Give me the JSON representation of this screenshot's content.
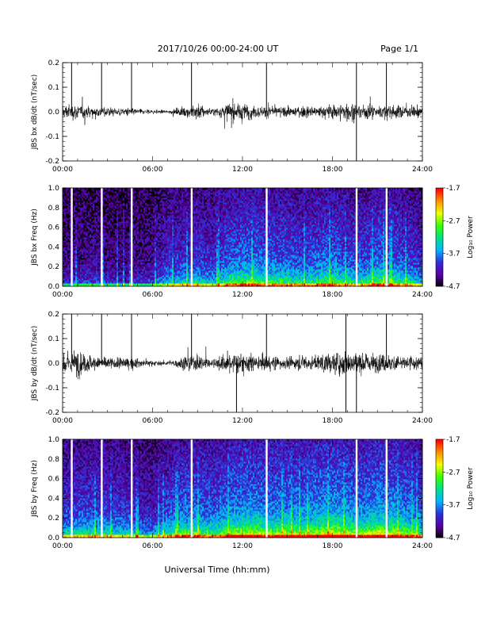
{
  "header": {
    "title": "2017/10/26  00:00-24:00 UT",
    "page": "Page 1/1"
  },
  "footer": {
    "xlabel": "Universal Time (hh:mm)"
  },
  "colorbar": {
    "label": "Log₁₀ Power",
    "ticks": [
      "-1.7",
      "-2.7",
      "-3.7",
      "-4.7"
    ],
    "tick_values": [
      -1.7,
      -2.7,
      -3.7,
      -4.7
    ],
    "range": [
      -4.7,
      -1.7
    ],
    "colors": [
      "#000000",
      "#5a00a0",
      "#2f2fd8",
      "#00b4ff",
      "#00e08a",
      "#3cff00",
      "#f2ff00",
      "#ff9000",
      "#ff0000"
    ]
  },
  "chart_data": [
    {
      "type": "line",
      "ylabel": "JBS bx dB/dt (nT/sec)",
      "xlim": [
        0,
        24
      ],
      "ylim": [
        -0.2,
        0.2
      ],
      "x_ticks": [
        "00:00",
        "06:00",
        "12:00",
        "18:00",
        "24:00"
      ],
      "y_ticks": [
        "0.2",
        "0.1",
        "0.0",
        "-0.1",
        "-0.2"
      ],
      "y_tick_values": [
        0.2,
        0.1,
        0.0,
        -0.1,
        -0.2
      ],
      "line_color": "#000000",
      "envelope_hours": [
        0,
        1,
        2,
        3,
        4,
        5,
        6,
        7,
        8,
        9,
        10,
        11,
        12,
        13,
        14,
        15,
        16,
        17,
        18,
        19,
        20,
        21,
        22,
        23,
        24
      ],
      "envelope_amplitude": [
        0.05,
        0.05,
        0.04,
        0.03,
        0.03,
        0.02,
        0.015,
        0.01,
        0.03,
        0.06,
        0.02,
        0.06,
        0.06,
        0.04,
        0.04,
        0.03,
        0.04,
        0.035,
        0.05,
        0.07,
        0.05,
        0.045,
        0.045,
        0.04,
        0.04
      ],
      "spikes": [
        {
          "t": 0.6,
          "v": 0.2
        },
        {
          "t": 2.6,
          "v": 0.2
        },
        {
          "t": 4.6,
          "v": 0.2
        },
        {
          "t": 8.6,
          "v": 0.2
        },
        {
          "t": 13.6,
          "v": 0.2
        },
        {
          "t": 19.6,
          "v": 0.2
        },
        {
          "t": 21.6,
          "v": 0.2
        },
        {
          "t": 19.6,
          "v": -0.2
        }
      ]
    },
    {
      "type": "heatmap",
      "ylabel": "JBS bx Freq (Hz)",
      "xlim": [
        0,
        24
      ],
      "ylim": [
        0,
        1.0
      ],
      "x_ticks": [
        "00:00",
        "06:00",
        "12:00",
        "18:00",
        "24:00"
      ],
      "y_ticks": [
        "1.0",
        "0.8",
        "0.6",
        "0.4",
        "0.2",
        "0.0"
      ],
      "y_tick_values": [
        1.0,
        0.8,
        0.6,
        0.4,
        0.2,
        0.0
      ],
      "z_range": [
        -4.7,
        -1.7
      ],
      "gap_hours": [
        0.6,
        2.6,
        4.6,
        8.6,
        13.6,
        19.6,
        21.6
      ],
      "activity_hours": [
        0,
        2,
        4,
        6,
        7,
        8,
        9,
        10,
        11,
        12,
        13,
        14,
        15,
        16,
        17,
        18,
        19,
        20,
        21,
        22,
        23,
        24
      ],
      "activity_level": [
        0.2,
        0.25,
        0.2,
        0.25,
        0.4,
        0.45,
        0.45,
        0.4,
        0.55,
        0.6,
        0.6,
        0.55,
        0.55,
        0.5,
        0.55,
        0.6,
        0.5,
        0.5,
        0.6,
        0.55,
        0.5,
        0.4
      ]
    },
    {
      "type": "line",
      "ylabel": "JBS by dB/dt (nT/sec)",
      "xlim": [
        0,
        24
      ],
      "ylim": [
        -0.2,
        0.2
      ],
      "x_ticks": [
        "00:00",
        "06:00",
        "12:00",
        "18:00",
        "24:00"
      ],
      "y_ticks": [
        "0.2",
        "0.1",
        "0.0",
        "-0.1",
        "-0.2"
      ],
      "y_tick_values": [
        0.2,
        0.1,
        0.0,
        -0.1,
        -0.2
      ],
      "line_color": "#000000",
      "envelope_hours": [
        0,
        1,
        2,
        3,
        4,
        5,
        6,
        7,
        8,
        9,
        10,
        11,
        12,
        13,
        14,
        15,
        16,
        17,
        18,
        19,
        20,
        21,
        22,
        23,
        24
      ],
      "envelope_amplitude": [
        0.08,
        0.09,
        0.05,
        0.04,
        0.04,
        0.03,
        0.02,
        0.015,
        0.04,
        0.06,
        0.03,
        0.07,
        0.07,
        0.05,
        0.05,
        0.04,
        0.05,
        0.05,
        0.07,
        0.09,
        0.07,
        0.06,
        0.06,
        0.05,
        0.05
      ],
      "spikes": [
        {
          "t": 0.6,
          "v": 0.2
        },
        {
          "t": 2.6,
          "v": 0.2
        },
        {
          "t": 4.6,
          "v": 0.2
        },
        {
          "t": 8.6,
          "v": 0.2
        },
        {
          "t": 13.6,
          "v": 0.2
        },
        {
          "t": 18.9,
          "v": 0.2
        },
        {
          "t": 21.6,
          "v": 0.2
        },
        {
          "t": 11.6,
          "v": -0.2
        },
        {
          "t": 18.9,
          "v": -0.2
        },
        {
          "t": 19.6,
          "v": -0.2
        }
      ]
    },
    {
      "type": "heatmap",
      "ylabel": "JBS by Freq (Hz)",
      "xlim": [
        0,
        24
      ],
      "ylim": [
        0,
        1.0
      ],
      "x_ticks": [
        "00:00",
        "06:00",
        "12:00",
        "18:00",
        "24:00"
      ],
      "y_ticks": [
        "1.0",
        "0.8",
        "0.6",
        "0.4",
        "0.2",
        "0.0"
      ],
      "y_tick_values": [
        1.0,
        0.8,
        0.6,
        0.4,
        0.2,
        0.0
      ],
      "z_range": [
        -4.7,
        -1.7
      ],
      "gap_hours": [
        0.6,
        2.6,
        4.6,
        8.6,
        13.6,
        19.6,
        21.6
      ],
      "activity_hours": [
        0,
        2,
        4,
        6,
        7,
        8,
        9,
        10,
        11,
        12,
        13,
        14,
        15,
        16,
        17,
        18,
        19,
        20,
        21,
        22,
        23,
        24
      ],
      "activity_level": [
        0.45,
        0.5,
        0.45,
        0.35,
        0.5,
        0.6,
        0.6,
        0.55,
        0.65,
        0.7,
        0.7,
        0.65,
        0.7,
        0.65,
        0.7,
        0.75,
        0.7,
        0.65,
        0.75,
        0.7,
        0.65,
        0.55
      ]
    }
  ]
}
